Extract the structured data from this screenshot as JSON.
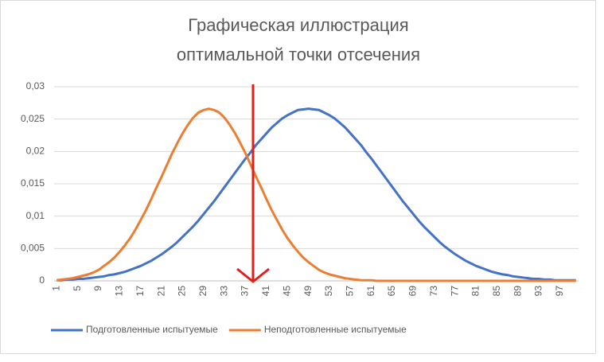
{
  "chart_data": {
    "type": "line",
    "title": [
      "Графическая иллюстрация",
      "оптимальной точки отсечения"
    ],
    "categories": [
      "1",
      null,
      null,
      null,
      "5",
      null,
      null,
      null,
      "9",
      null,
      null,
      null,
      "13",
      null,
      null,
      null,
      "17",
      null,
      null,
      null,
      "21",
      null,
      null,
      null,
      "25",
      null,
      null,
      null,
      "29",
      null,
      null,
      null,
      "33",
      null,
      null,
      null,
      "37",
      null,
      null,
      null,
      "41",
      null,
      null,
      null,
      "45",
      null,
      null,
      null,
      "49",
      null,
      null,
      null,
      "53",
      null,
      null,
      null,
      "57",
      null,
      null,
      null,
      "61",
      null,
      null,
      null,
      "65",
      null,
      null,
      null,
      "69",
      null,
      null,
      null,
      "73",
      null,
      null,
      null,
      "77",
      null,
      null,
      null,
      "81",
      null,
      null,
      null,
      "85",
      null,
      null,
      null,
      "89",
      null,
      null,
      null,
      "93",
      null,
      null,
      null,
      "97",
      null,
      null,
      null
    ],
    "series": [
      {
        "name": "Подготовленные испытуемые",
        "color": "#4472c4",
        "values": [
          0.0001,
          0.0001,
          0.0002,
          0.0002,
          0.0003,
          0.0003,
          0.0004,
          0.0005,
          0.0006,
          0.0007,
          0.0009,
          0.001,
          0.0012,
          0.0014,
          0.0017,
          0.002,
          0.0023,
          0.0027,
          0.0031,
          0.0036,
          0.0041,
          0.0047,
          0.0053,
          0.006,
          0.0068,
          0.0076,
          0.0084,
          0.0093,
          0.0103,
          0.0113,
          0.0123,
          0.0134,
          0.0145,
          0.0156,
          0.0167,
          0.0178,
          0.0189,
          0.0199,
          0.021,
          0.0219,
          0.0228,
          0.0237,
          0.0244,
          0.0251,
          0.0256,
          0.026,
          0.0264,
          0.0265,
          0.0266,
          0.0265,
          0.0264,
          0.026,
          0.0256,
          0.0251,
          0.0244,
          0.0237,
          0.0228,
          0.0219,
          0.021,
          0.0199,
          0.0189,
          0.0178,
          0.0167,
          0.0156,
          0.0145,
          0.0134,
          0.0123,
          0.0113,
          0.0103,
          0.0093,
          0.0084,
          0.0076,
          0.0068,
          0.006,
          0.0053,
          0.0047,
          0.0041,
          0.0036,
          0.0031,
          0.0027,
          0.0023,
          0.002,
          0.0017,
          0.0014,
          0.0012,
          0.001,
          0.0009,
          0.0007,
          0.0006,
          0.0005,
          0.0004,
          0.0003,
          0.0003,
          0.0002,
          0.0002,
          0.0001,
          0.0001,
          0.0001,
          0.0001,
          0.0001
        ]
      },
      {
        "name": "Неподготовленные испытуемые",
        "color": "#ed7d31",
        "values": [
          0.0001,
          0.0002,
          0.0003,
          0.0004,
          0.0006,
          0.0008,
          0.001,
          0.0013,
          0.0017,
          0.0023,
          0.0029,
          0.0036,
          0.0045,
          0.0055,
          0.0066,
          0.0079,
          0.0094,
          0.0109,
          0.0126,
          0.0144,
          0.0161,
          0.0179,
          0.0197,
          0.0213,
          0.0228,
          0.0241,
          0.0252,
          0.026,
          0.0264,
          0.0266,
          0.0264,
          0.026,
          0.0252,
          0.0241,
          0.0228,
          0.0213,
          0.0197,
          0.0179,
          0.0161,
          0.0144,
          0.0126,
          0.0109,
          0.0094,
          0.0079,
          0.0066,
          0.0055,
          0.0045,
          0.0036,
          0.0029,
          0.0023,
          0.0017,
          0.0013,
          0.001,
          0.0008,
          0.0006,
          0.0004,
          0.0003,
          0.0002,
          0.0001,
          0.0001,
          0.0001,
          0,
          0,
          0,
          0,
          0,
          0,
          0,
          0,
          0,
          0,
          0,
          0,
          0,
          0,
          0,
          0,
          0,
          0,
          0,
          0,
          0,
          0,
          0,
          0,
          0,
          0,
          0,
          0,
          0,
          0,
          0,
          0,
          0,
          0,
          0,
          0,
          0,
          0,
          0
        ]
      }
    ],
    "ylim": [
      0,
      0.03
    ],
    "yticks": [
      0,
      {
        "value": 0.005,
        "label": "0,005"
      },
      {
        "value": 0.01,
        "label": "0,01"
      },
      {
        "value": 0.015,
        "label": "0,015"
      },
      {
        "value": 0.02,
        "label": "0,02"
      },
      {
        "value": 0.025,
        "label": "0,025"
      },
      {
        "value": 0.03,
        "label": "0,03"
      }
    ],
    "grid": true,
    "legend": "bottom"
  }
}
